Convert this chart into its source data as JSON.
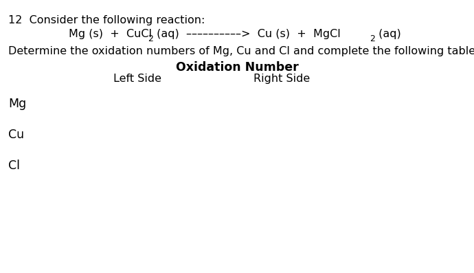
{
  "background_color": "#ffffff",
  "question_number": "12",
  "line1": "Consider the following reaction:",
  "line3": "Determine the oxidation numbers of Mg, Cu and Cl and complete the following table.",
  "line4_bold": "Oxidation Number",
  "line5_left": "Left Side",
  "line5_right": "Right Side",
  "row_labels": [
    "Mg",
    "Cu",
    "Cl"
  ],
  "font_size_main": 11.5,
  "font_size_label": 12.5,
  "font_size_bold": 12.5,
  "font_size_sub": 9.0
}
